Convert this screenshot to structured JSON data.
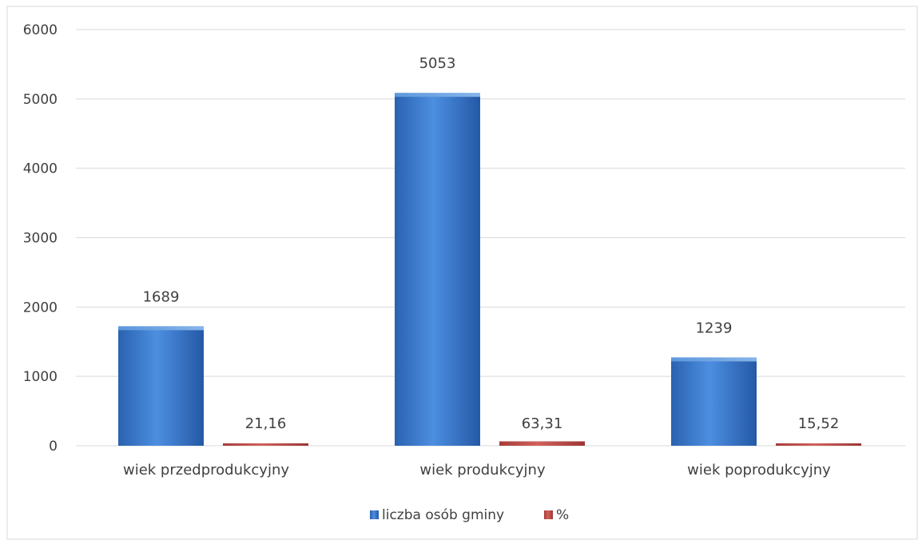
{
  "chart_data": {
    "type": "bar",
    "categories": [
      "wiek przedprodukcyjny",
      "wiek produkcyjny",
      "wiek poprodukcyjny"
    ],
    "series": [
      {
        "name": "liczba osób gminy",
        "values": [
          1689,
          5053,
          1239
        ],
        "labels": [
          "1689",
          "5053",
          "1239"
        ],
        "color": "#3a78c9"
      },
      {
        "name": "%",
        "values": [
          21.16,
          63.31,
          15.52
        ],
        "labels": [
          "21,16",
          "63,31",
          "15,52"
        ],
        "color": "#c0504d"
      }
    ],
    "y_ticks": [
      0,
      1000,
      2000,
      3000,
      4000,
      5000,
      6000
    ],
    "ylim": [
      0,
      6000
    ],
    "grid": true,
    "legend_position": "bottom"
  }
}
